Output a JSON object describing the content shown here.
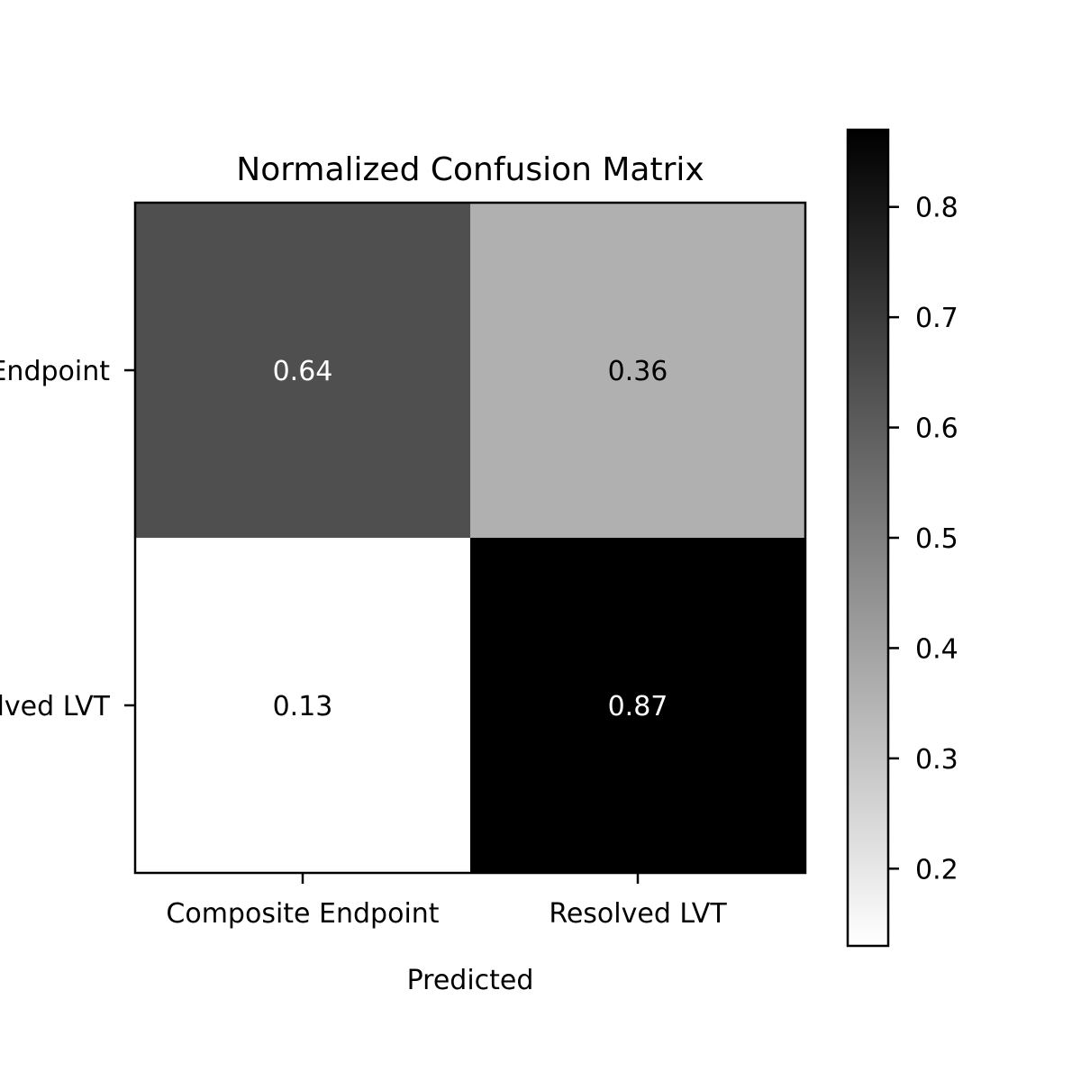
{
  "chart_data": {
    "type": "heatmap",
    "title": "Normalized Confusion Matrix",
    "xlabel": "Predicted",
    "ylabel": "",
    "x_categories": [
      "Composite Endpoint",
      "Resolved LVT"
    ],
    "y_categories": [
      "Composite Endpoint",
      "Resolved LVT"
    ],
    "matrix": [
      [
        0.64,
        0.36
      ],
      [
        0.13,
        0.87
      ]
    ],
    "cell_labels": [
      [
        "0.64",
        "0.36"
      ],
      [
        "0.13",
        "0.87"
      ]
    ],
    "colormap": "Greys",
    "colorbar": {
      "range": [
        0.13,
        0.87
      ],
      "ticks": [
        0.2,
        0.3,
        0.4,
        0.5,
        0.6,
        0.7,
        0.8
      ],
      "tick_labels": [
        "0.2",
        "0.3",
        "0.4",
        "0.5",
        "0.6",
        "0.7",
        "0.8"
      ]
    }
  }
}
